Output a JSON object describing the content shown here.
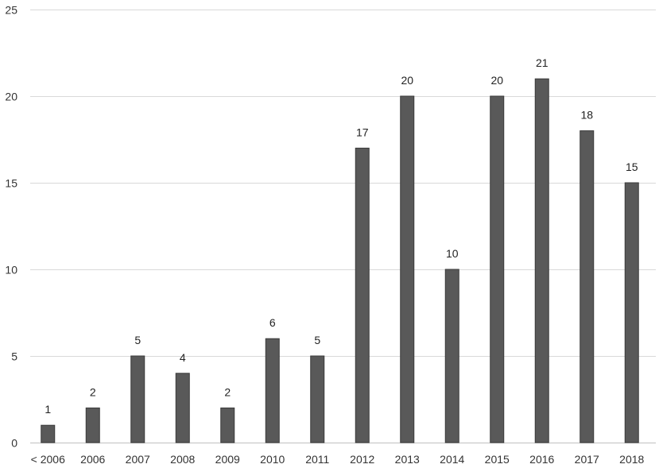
{
  "chart_data": {
    "type": "bar",
    "categories": [
      "< 2006",
      "2006",
      "2007",
      "2008",
      "2009",
      "2010",
      "2011",
      "2012",
      "2013",
      "2014",
      "2015",
      "2016",
      "2017",
      "2018"
    ],
    "values": [
      1,
      2,
      5,
      4,
      2,
      6,
      5,
      17,
      20,
      10,
      20,
      21,
      18,
      15
    ],
    "ylim": [
      0,
      25
    ],
    "yticks": [
      0,
      5,
      10,
      15,
      20,
      25
    ],
    "grid": true,
    "data_labels": true,
    "legend": "none",
    "colors": {
      "bar": "#595959",
      "bar_edge": "#3a3a3a",
      "grid": "#d9d9d9",
      "axis": "#bfbfbf"
    }
  }
}
